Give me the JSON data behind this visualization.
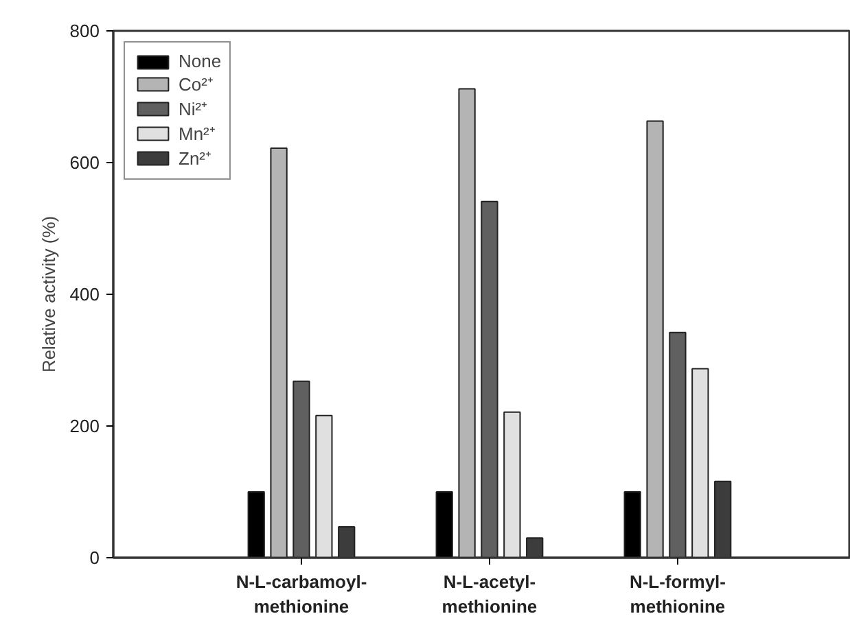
{
  "chart_data": {
    "type": "bar",
    "ylabel": "Relative activity (%)",
    "categories": [
      "N-L-carbamoyl-\nmethionine",
      "N-L-acetyl-\nmethionine",
      "N-L-formyl-\nmethionine"
    ],
    "series": [
      {
        "name": "None",
        "color": "#000000",
        "values": [
          100,
          100,
          100
        ]
      },
      {
        "name": "Co²⁺",
        "color": "#b4b4b4",
        "values": [
          622,
          712,
          663
        ]
      },
      {
        "name": "Ni²⁺",
        "color": "#606060",
        "values": [
          268,
          541,
          342
        ]
      },
      {
        "name": "Mn²⁺",
        "color": "#e0e0e0",
        "values": [
          216,
          221,
          287
        ]
      },
      {
        "name": "Zn²⁺",
        "color": "#3c3c3c",
        "values": [
          47,
          30,
          116
        ]
      }
    ],
    "ylim": [
      0,
      800
    ],
    "yticks": [
      0,
      200,
      400,
      600,
      800
    ],
    "grid": false,
    "legend": "top left"
  }
}
